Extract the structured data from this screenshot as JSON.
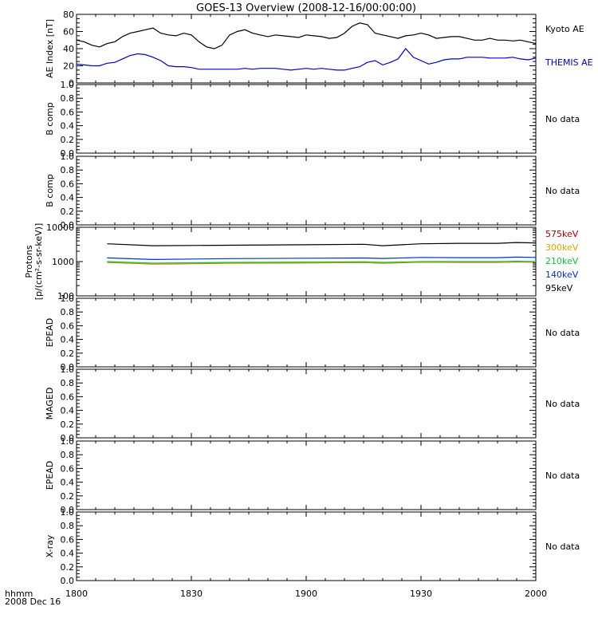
{
  "title": "GOES-13 Overview (2008-12-16/00:00:00)",
  "time_axis": {
    "label_line1": "hhmm",
    "label_line2": "2008 Dec 16",
    "ticks": [
      "1800",
      "1830",
      "1900",
      "1930",
      "2000"
    ],
    "range_minutes": [
      0,
      120
    ]
  },
  "colors": {
    "kyoto": "#000000",
    "themis": "#0000cc",
    "p575": "#aa0000",
    "p300": "#e6a100",
    "p210": "#00cc33",
    "p140": "#0033cc",
    "p95": "#000000"
  },
  "chart_data": [
    {
      "type": "line",
      "ylabel": "AE Index [nT]",
      "ylim": [
        0,
        80
      ],
      "yticks": [
        "0",
        "20",
        "40",
        "60",
        "80"
      ],
      "x": [
        0,
        2,
        4,
        6,
        8,
        10,
        12,
        14,
        16,
        18,
        20,
        22,
        24,
        26,
        28,
        30,
        32,
        34,
        36,
        38,
        40,
        42,
        44,
        46,
        48,
        50,
        52,
        54,
        56,
        58,
        60,
        62,
        64,
        66,
        68,
        70,
        72,
        74,
        76,
        78,
        80,
        82,
        84,
        86,
        88,
        90,
        92,
        94,
        96,
        98,
        100,
        102,
        104,
        106,
        108,
        110,
        112,
        114,
        116,
        118,
        120
      ],
      "series": [
        {
          "name": "Kyoto AE",
          "color_key": "kyoto",
          "values": [
            50,
            48,
            44,
            42,
            46,
            48,
            54,
            58,
            60,
            62,
            64,
            58,
            56,
            55,
            58,
            56,
            48,
            42,
            40,
            44,
            56,
            60,
            62,
            58,
            56,
            54,
            56,
            55,
            54,
            53,
            56,
            55,
            54,
            52,
            53,
            58,
            66,
            70,
            68,
            58,
            56,
            54,
            52,
            55,
            56,
            58,
            56,
            52,
            53,
            54,
            54,
            52,
            50,
            50,
            52,
            50,
            50,
            49,
            50,
            48,
            46
          ]
        },
        {
          "name": "THEMIS AE",
          "color_key": "themis",
          "values": [
            22,
            21,
            20,
            20,
            23,
            24,
            28,
            32,
            34,
            33,
            30,
            26,
            20,
            19,
            19,
            18,
            16,
            16,
            16,
            16,
            16,
            16,
            17,
            16,
            17,
            17,
            17,
            16,
            15,
            16,
            17,
            16,
            17,
            16,
            15,
            15,
            17,
            19,
            24,
            26,
            21,
            24,
            28,
            40,
            30,
            26,
            22,
            24,
            27,
            28,
            28,
            30,
            30,
            30,
            29,
            29,
            29,
            30,
            28,
            27,
            29
          ]
        }
      ]
    },
    {
      "type": "line",
      "ylabel": "B comp",
      "ylim": [
        0,
        1
      ],
      "yticks": [
        "0.0",
        "0.2",
        "0.4",
        "0.6",
        "0.8",
        "1.0"
      ],
      "no_data": "No data"
    },
    {
      "type": "line",
      "ylabel": "B comp",
      "ylim": [
        0,
        1
      ],
      "yticks": [
        "0.0",
        "0.2",
        "0.4",
        "0.6",
        "0.8",
        "1.0"
      ],
      "no_data": "No data"
    },
    {
      "type": "line",
      "log_scale": true,
      "ylabel_line1": "Protons",
      "ylabel_line2": "[p/(cm²-s-sr-keV)]",
      "ylim": [
        100,
        10000
      ],
      "yticks": [
        {
          "label": "10000",
          "value": 10000
        },
        {
          "label": "1000",
          "value": 1000
        },
        {
          "label": "100",
          "value": 100
        }
      ],
      "x": [
        8,
        20,
        40,
        60,
        75,
        80,
        90,
        100,
        110,
        115,
        120
      ],
      "series": [
        {
          "name": "575keV",
          "color_key": "p575",
          "values": [
            950,
            850,
            900,
            920,
            940,
            900,
            960,
            950,
            950,
            980,
            960
          ]
        },
        {
          "name": "300keV",
          "color_key": "p300",
          "values": [
            960,
            860,
            910,
            930,
            950,
            910,
            970,
            960,
            960,
            990,
            970
          ]
        },
        {
          "name": "210keV",
          "color_key": "p210",
          "values": [
            1000,
            900,
            950,
            970,
            990,
            950,
            1000,
            1000,
            1000,
            1020,
            1000
          ]
        },
        {
          "name": "140keV",
          "color_key": "p140",
          "values": [
            1280,
            1150,
            1220,
            1250,
            1270,
            1230,
            1320,
            1300,
            1300,
            1350,
            1320
          ]
        },
        {
          "name": "95keV",
          "color_key": "p95",
          "values": [
            3300,
            2900,
            3000,
            3100,
            3200,
            2900,
            3300,
            3400,
            3400,
            3600,
            3500
          ]
        }
      ]
    },
    {
      "type": "line",
      "ylabel": "EPEAD",
      "ylim": [
        0,
        1
      ],
      "yticks": [
        "0.0",
        "0.2",
        "0.4",
        "0.6",
        "0.8",
        "1.0"
      ],
      "no_data": "No data"
    },
    {
      "type": "line",
      "ylabel": "MAGED",
      "ylim": [
        0,
        1
      ],
      "yticks": [
        "0.0",
        "0.2",
        "0.4",
        "0.6",
        "0.8",
        "1.0"
      ],
      "no_data": "No data"
    },
    {
      "type": "line",
      "ylabel": "EPEAD",
      "ylim": [
        0,
        1
      ],
      "yticks": [
        "0.0",
        "0.2",
        "0.4",
        "0.6",
        "0.8",
        "1.0"
      ],
      "no_data": "No data"
    },
    {
      "type": "line",
      "ylabel": "X-ray",
      "ylim": [
        0,
        1
      ],
      "yticks": [
        "0.0",
        "0.2",
        "0.4",
        "0.6",
        "0.8",
        "1.0"
      ],
      "no_data": "No data"
    }
  ]
}
